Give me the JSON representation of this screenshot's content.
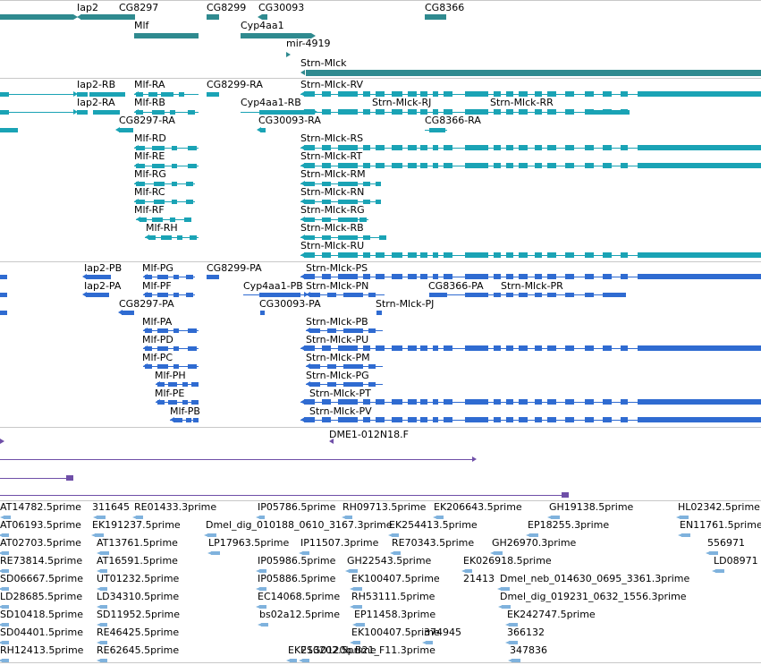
{
  "colors": {
    "gene": "#2f8a8f",
    "transcript": "#1aa3b5",
    "protein": "#2f6bd1",
    "clone": "#6f4fa8",
    "est": "#7fb2dd",
    "separator": "#c8c8c8"
  },
  "tracks": {
    "genes": {
      "labels": [
        "Iap2",
        "CG8297",
        "CG8299",
        "CG30093",
        "CG8366",
        "Mlf",
        "Cyp4aa1",
        "mir-4919",
        "Strn-Mlck"
      ]
    },
    "transcripts": {
      "labels": [
        "Iap2-RB",
        "Mlf-RA",
        "CG8299-RA",
        "Strn-Mlck-RV",
        "Iap2-RA",
        "Mlf-RB",
        "Cyp4aa1-RB",
        "Strn-Mlck-RJ",
        "Strn-Mlck-RR",
        "CG8297-RA",
        "CG30093-RA",
        "CG8366-RA",
        "Mlf-RD",
        "Strn-Mlck-RS",
        "Mlf-RE",
        "Strn-Mlck-RT",
        "Mlf-RG",
        "Strn-Mlck-RM",
        "Mlf-RC",
        "Strn-Mlck-RN",
        "Mlf-RF",
        "Strn-Mlck-RG",
        "Mlf-RH",
        "Strn-Mlck-RB",
        "Strn-Mlck-RU"
      ]
    },
    "proteins": {
      "labels": [
        "Iap2-PB",
        "Mlf-PG",
        "CG8299-PA",
        "Strn-Mlck-PS",
        "Iap2-PA",
        "Mlf-PF",
        "Cyp4aa1-PB",
        "Strn-Mlck-PN",
        "CG8366-PA",
        "Strn-Mlck-PR",
        "CG8297-PA",
        "CG30093-PA",
        "Strn-Mlck-PJ",
        "Mlf-PA",
        "Strn-Mlck-PB",
        "Mlf-PD",
        "Strn-Mlck-PU",
        "Mlf-PC",
        "Strn-Mlck-PM",
        "Mlf-PH",
        "Strn-Mlck-PG",
        "Mlf-PE",
        "Strn-Mlck-PT",
        "Mlf-PB",
        "Strn-Mlck-PV"
      ]
    },
    "clones": {
      "labels": [
        "DME1-012N18.F"
      ]
    },
    "ests": {
      "labels": [
        "AT14782.5prime",
        "311645",
        "RE01433.3prime",
        "IP05786.5prime",
        "RH09713.5prime",
        "EK206643.5prime",
        "GH19138.5prime",
        "HL02342.5prime",
        "AT06193.5prime",
        "EK191237.5prime",
        "Dmel_dig_010188_0610_3167.3prime",
        "EK254413.5prime",
        "EP18255.3prime",
        "EN11761.5prime",
        "AT02703.5prime",
        "AT13761.5prime",
        "LP17963.5prime",
        "IP11507.3prime",
        "RE70343.5prime",
        "GH26970.3prime",
        "556971",
        "RE73814.5prime",
        "AT16591.5prime",
        "IP05986.5prime",
        "GH22543.5prime",
        "EK026918.5prime",
        "LD08971",
        "SD06667.5prime",
        "UT01232.5prime",
        "IP05886.5prime",
        "EK100407.5prime",
        "21413",
        "Dmel_neb_014630_0695_3361.3prime",
        "LD28685.5prime",
        "LD34310.5prime",
        "EC14068.5prime",
        "RH53111.5prime",
        "Dmel_dig_019231_0632_1556.3prime",
        "SD10418.5prime",
        "SD11952.5prime",
        "bs02a12.5prime",
        "EP11458.3prime",
        "EK242747.5prime",
        "SD04401.5prime",
        "RE46425.5prime",
        "EK100407.5prime",
        "374945",
        "366132",
        "RH12413.5prime",
        "RE62645.5prime",
        "EK213202.5prime",
        "ESG0120b.B21_F11.3prime",
        "347836"
      ]
    }
  }
}
